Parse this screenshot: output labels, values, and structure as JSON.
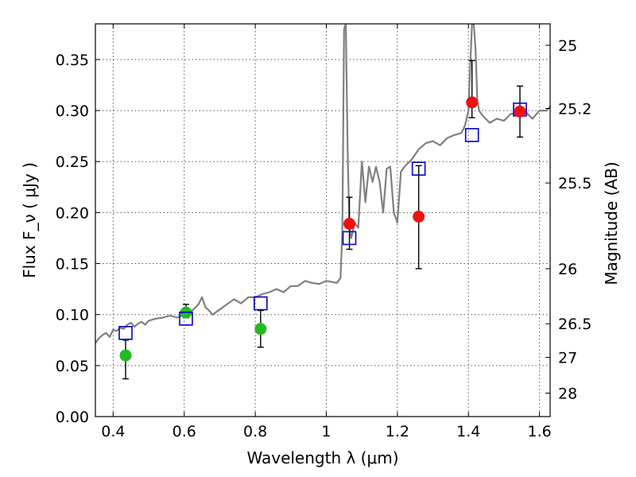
{
  "chart_data": {
    "type": "scatter",
    "xlabel": "Wavelength  λ (μm)",
    "ylabel": "Flux  F_ν  ( μJy )",
    "ylabel_right": "Magnitude (AB)",
    "xlim": [
      0.35,
      1.63
    ],
    "ylim": [
      0.0,
      0.385
    ],
    "x_ticks": [
      0.4,
      0.6,
      0.8,
      1.0,
      1.2,
      1.4,
      1.6
    ],
    "x_tick_labels": [
      "0.4",
      "0.6",
      "0.8",
      "1",
      "1.2",
      "1.4",
      "1.6"
    ],
    "y_ticks": [
      0.0,
      0.05,
      0.1,
      0.15,
      0.2,
      0.25,
      0.3,
      0.35
    ],
    "y_tick_labels": [
      "0.00",
      "0.05",
      "0.10",
      "0.15",
      "0.20",
      "0.25",
      "0.30",
      "0.35"
    ],
    "right_ticks": [
      {
        "label": "25",
        "flux": 0.364
      },
      {
        "label": "25.2",
        "flux": 0.302
      },
      {
        "label": "25.5",
        "flux": 0.229
      },
      {
        "label": "26",
        "flux": 0.145
      },
      {
        "label": "26.5",
        "flux": 0.091
      },
      {
        "label": "27",
        "flux": 0.058
      },
      {
        "label": "28",
        "flux": 0.023
      }
    ],
    "grid": true,
    "colors": {
      "spectrum": "#808080",
      "green_points": "#22bb22",
      "red_points": "#ee1111",
      "model_squares": "#0000cc",
      "errorbar": "#000000"
    },
    "spectrum": {
      "x": [
        0.35,
        0.36,
        0.37,
        0.38,
        0.39,
        0.4,
        0.41,
        0.42,
        0.43,
        0.44,
        0.45,
        0.46,
        0.47,
        0.48,
        0.49,
        0.5,
        0.52,
        0.54,
        0.56,
        0.58,
        0.6,
        0.62,
        0.64,
        0.65,
        0.66,
        0.67,
        0.68,
        0.7,
        0.72,
        0.74,
        0.76,
        0.78,
        0.8,
        0.82,
        0.84,
        0.86,
        0.88,
        0.9,
        0.92,
        0.94,
        0.96,
        0.98,
        1.0,
        1.03,
        1.04,
        1.045,
        1.05,
        1.055,
        1.06,
        1.065,
        1.07,
        1.08,
        1.09,
        1.1,
        1.11,
        1.12,
        1.13,
        1.14,
        1.15,
        1.16,
        1.17,
        1.18,
        1.19,
        1.2,
        1.21,
        1.22,
        1.24,
        1.26,
        1.28,
        1.3,
        1.32,
        1.34,
        1.36,
        1.38,
        1.39,
        1.4,
        1.41,
        1.415,
        1.42,
        1.425,
        1.43,
        1.44,
        1.46,
        1.48,
        1.5,
        1.52,
        1.54,
        1.56,
        1.58,
        1.6,
        1.62,
        1.63
      ],
      "y": [
        0.072,
        0.077,
        0.08,
        0.082,
        0.078,
        0.085,
        0.084,
        0.087,
        0.086,
        0.09,
        0.092,
        0.088,
        0.091,
        0.093,
        0.09,
        0.094,
        0.096,
        0.097,
        0.099,
        0.097,
        0.1,
        0.103,
        0.11,
        0.117,
        0.107,
        0.104,
        0.1,
        0.105,
        0.11,
        0.115,
        0.111,
        0.117,
        0.117,
        0.12,
        0.122,
        0.125,
        0.122,
        0.128,
        0.128,
        0.133,
        0.131,
        0.13,
        0.133,
        0.131,
        0.136,
        0.18,
        0.38,
        0.385,
        0.26,
        0.185,
        0.175,
        0.19,
        0.185,
        0.25,
        0.21,
        0.245,
        0.23,
        0.245,
        0.23,
        0.2,
        0.243,
        0.245,
        0.2,
        0.19,
        0.24,
        0.245,
        0.252,
        0.262,
        0.268,
        0.27,
        0.266,
        0.273,
        0.276,
        0.278,
        0.285,
        0.3,
        0.385,
        0.385,
        0.36,
        0.31,
        0.3,
        0.295,
        0.288,
        0.292,
        0.29,
        0.297,
        0.296,
        0.299,
        0.292,
        0.3,
        0.3,
        0.304
      ]
    },
    "green_points": {
      "x": [
        0.435,
        0.605,
        0.815
      ],
      "y": [
        0.06,
        0.102,
        0.086
      ],
      "err_lo": [
        0.023,
        0.005,
        0.018
      ],
      "err_hi": [
        0.015,
        0.008,
        0.018
      ]
    },
    "red_points": {
      "x": [
        1.065,
        1.26,
        1.41,
        1.545
      ],
      "y": [
        0.189,
        0.196,
        0.308,
        0.299
      ],
      "err_lo": [
        0.025,
        0.051,
        0.015,
        0.025
      ],
      "err_hi": [
        0.026,
        0.05,
        0.041,
        0.025
      ]
    },
    "model_squares": {
      "x": [
        0.435,
        0.605,
        0.815,
        1.065,
        1.26,
        1.41,
        1.545
      ],
      "y": [
        0.082,
        0.096,
        0.111,
        0.175,
        0.243,
        0.276,
        0.301
      ]
    }
  }
}
